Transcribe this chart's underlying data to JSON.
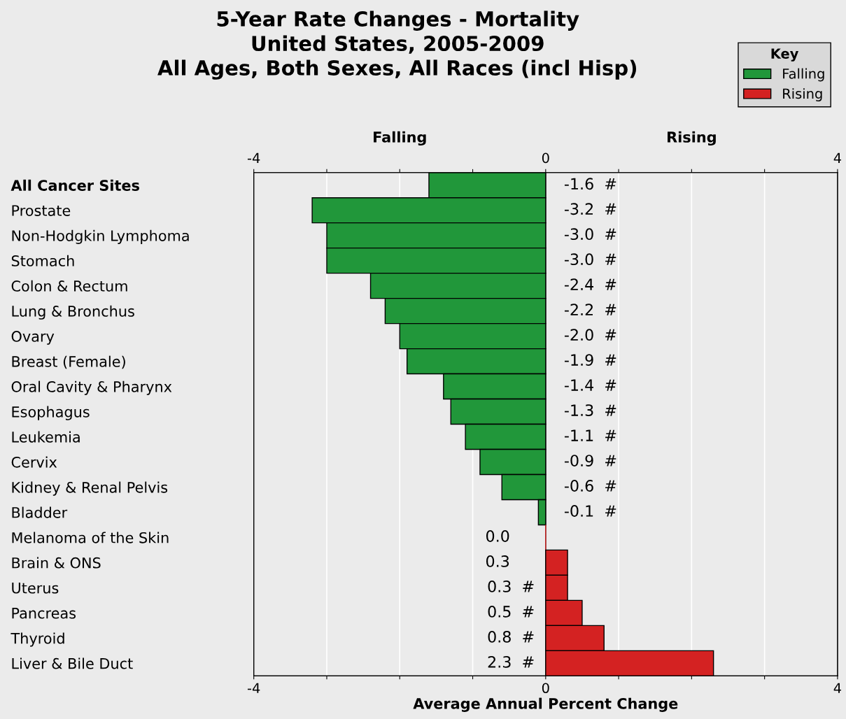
{
  "chart_data": {
    "type": "bar",
    "orientation": "horizontal",
    "title": "5-Year Rate Changes - Mortality\nUnited States, 2005-2009\nAll Ages, Both Sexes, All Races (incl Hisp)",
    "xlabel": "Average Annual Percent Change",
    "categories": [
      "All Cancer Sites",
      "Prostate",
      "Non-Hodgkin Lymphoma",
      "Stomach",
      "Colon & Rectum",
      "Lung & Bronchus",
      "Ovary",
      "Breast (Female)",
      "Oral Cavity & Pharynx",
      "Esophagus",
      "Leukemia",
      "Cervix",
      "Kidney & Renal Pelvis",
      "Bladder",
      "Melanoma of the Skin",
      "Brain & ONS",
      "Uterus",
      "Pancreas",
      "Thyroid",
      "Liver & Bile Duct"
    ],
    "series": [
      {
        "name": "Falling",
        "color": "#21973a",
        "values": [
          -1.6,
          -3.2,
          -3.0,
          -3.0,
          -2.4,
          -2.2,
          -2.0,
          -1.9,
          -1.4,
          -1.3,
          -1.1,
          -0.9,
          -0.6,
          -0.1,
          null,
          null,
          null,
          null,
          null,
          null
        ],
        "value_labels": [
          "-1.6  #",
          "-3.2  #",
          "-3.0  #",
          "-3.0  #",
          "-2.4  #",
          "-2.2  #",
          "-2.0  #",
          "-1.9  #",
          "-1.4  #",
          "-1.3  #",
          "-1.1  #",
          "-0.9  #",
          "-0.6  #",
          "-0.1  #",
          null,
          null,
          null,
          null,
          null,
          null
        ]
      },
      {
        "name": "Rising",
        "color": "#d42222",
        "values": [
          null,
          null,
          null,
          null,
          null,
          null,
          null,
          null,
          null,
          null,
          null,
          null,
          null,
          null,
          0.0,
          0.3,
          0.3,
          0.5,
          0.8,
          2.3
        ],
        "value_labels": [
          null,
          null,
          null,
          null,
          null,
          null,
          null,
          null,
          null,
          null,
          null,
          null,
          null,
          null,
          "0.0     ",
          "0.3     ",
          "0.3  #",
          "0.5  #",
          "0.8  #",
          "2.3  #"
        ]
      }
    ],
    "xlim": [
      -4,
      4
    ],
    "xticks": [
      -4,
      {
        "value": -3,
        "label": null
      },
      {
        "value": -2,
        "label": null
      },
      {
        "value": -1,
        "label": null
      },
      0,
      {
        "value": 1,
        "label": null
      },
      {
        "value": 2,
        "label": null
      },
      {
        "value": 3,
        "label": null
      },
      4
    ],
    "x2lim": [
      -4,
      4
    ],
    "x2ticks": [
      -4,
      {
        "value": -3,
        "label": null
      },
      {
        "value": -2,
        "label": null
      },
      {
        "value": -1,
        "label": null
      },
      0,
      {
        "value": 1,
        "label": null
      },
      {
        "value": 2,
        "label": null
      },
      {
        "value": 3,
        "label": null
      },
      4
    ],
    "annotations": [
      "Falling",
      "Rising"
    ],
    "legend_title": "Key",
    "legend": "top right",
    "grid": "x"
  }
}
